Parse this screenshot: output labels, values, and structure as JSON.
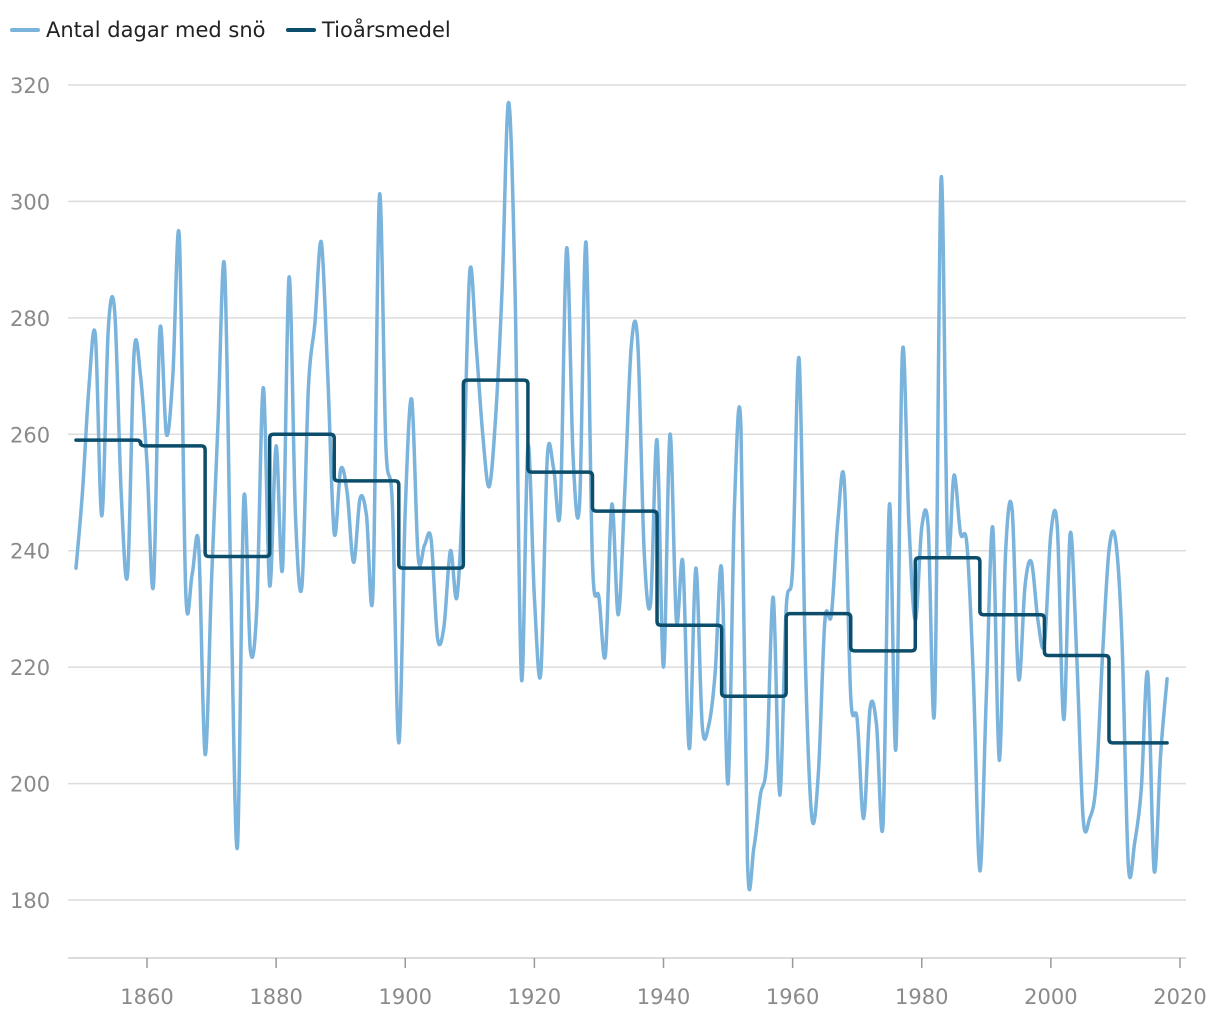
{
  "chart_data": {
    "type": "line",
    "title": "",
    "xlabel": "",
    "ylabel": "",
    "xlim": [
      1845,
      2022
    ],
    "ylim": [
      170,
      325
    ],
    "x_ticks": [
      1860,
      1880,
      1900,
      1920,
      1940,
      1960,
      1980,
      2000,
      2020
    ],
    "y_ticks": [
      180,
      200,
      220,
      240,
      260,
      280,
      300,
      320
    ],
    "grid": "horizontal",
    "legend": "top-left",
    "series": [
      {
        "name": "Antal dagar med snö",
        "color": "#7ab3dc",
        "style": "smooth",
        "x": [
          1849,
          1850,
          1851,
          1852,
          1853,
          1854,
          1855,
          1856,
          1857,
          1858,
          1859,
          1860,
          1861,
          1862,
          1863,
          1864,
          1865,
          1866,
          1867,
          1868,
          1869,
          1870,
          1871,
          1872,
          1873,
          1874,
          1875,
          1876,
          1877,
          1878,
          1879,
          1880,
          1881,
          1882,
          1883,
          1884,
          1885,
          1886,
          1887,
          1888,
          1889,
          1890,
          1891,
          1892,
          1893,
          1894,
          1895,
          1896,
          1897,
          1898,
          1899,
          1900,
          1901,
          1902,
          1903,
          1904,
          1905,
          1906,
          1907,
          1908,
          1909,
          1910,
          1911,
          1912,
          1913,
          1914,
          1915,
          1916,
          1917,
          1918,
          1919,
          1920,
          1921,
          1922,
          1923,
          1924,
          1925,
          1926,
          1927,
          1928,
          1929,
          1930,
          1931,
          1932,
          1933,
          1934,
          1935,
          1936,
          1937,
          1938,
          1939,
          1940,
          1941,
          1942,
          1943,
          1944,
          1945,
          1946,
          1947,
          1948,
          1949,
          1950,
          1951,
          1952,
          1953,
          1954,
          1955,
          1956,
          1957,
          1958,
          1959,
          1960,
          1961,
          1962,
          1963,
          1964,
          1965,
          1966,
          1967,
          1968,
          1969,
          1970,
          1971,
          1972,
          1973,
          1974,
          1975,
          1976,
          1977,
          1978,
          1979,
          1980,
          1981,
          1982,
          1983,
          1984,
          1985,
          1986,
          1987,
          1988,
          1989,
          1990,
          1991,
          1992,
          1993,
          1994,
          1995,
          1996,
          1997,
          1998,
          1999,
          2000,
          2001,
          2002,
          2003,
          2004,
          2005,
          2006,
          2007,
          2008,
          2009,
          2010,
          2011,
          2012,
          2013,
          2014,
          2015,
          2016,
          2017,
          2018
        ],
        "y": [
          237,
          250,
          268,
          277,
          246,
          278,
          281,
          250,
          236,
          274,
          270,
          255,
          234,
          278,
          260,
          270,
          294,
          233,
          236,
          241,
          205,
          235,
          262,
          289,
          233,
          189,
          249,
          223,
          230,
          268,
          234,
          258,
          237,
          287,
          246,
          234,
          268,
          279,
          293,
          270,
          243,
          254,
          250,
          238,
          249,
          246,
          233,
          301,
          258,
          248,
          207,
          247,
          266,
          239,
          241,
          242,
          225,
          227,
          240,
          232,
          252,
          288,
          275,
          260,
          251,
          263,
          285,
          317,
          285,
          218,
          258,
          232,
          219,
          256,
          254,
          247,
          292,
          256,
          248,
          293,
          238,
          232,
          222,
          248,
          229,
          250,
          275,
          276,
          240,
          231,
          259,
          220,
          260,
          228,
          238,
          206,
          237,
          210,
          210,
          219,
          237,
          200,
          248,
          261,
          187,
          189,
          198,
          204,
          232,
          198,
          230,
          237,
          273,
          220,
          194,
          202,
          228,
          229,
          245,
          252,
          215,
          211,
          194,
          213,
          210,
          193,
          248,
          206,
          274,
          245,
          228,
          244,
          244,
          213,
          304,
          241,
          253,
          243,
          241,
          218,
          185,
          215,
          244,
          204,
          240,
          247,
          218,
          234,
          238,
          228,
          224,
          243,
          244,
          211,
          243,
          222,
          194,
          194,
          200,
          222,
          240,
          242,
          225,
          186,
          190,
          199,
          219,
          185,
          205,
          218
        ]
      },
      {
        "name": "Tioårsmedel",
        "color": "#0b4d6a",
        "style": "step",
        "x": [
          1849,
          1859,
          1869,
          1879,
          1889,
          1899,
          1909,
          1919,
          1929,
          1939,
          1949,
          1959,
          1969,
          1979,
          1989,
          1999,
          2009,
          2018
        ],
        "y": [
          259,
          258,
          239,
          260,
          252,
          237,
          269.3,
          253.5,
          246.8,
          227.2,
          215,
          229.2,
          222.8,
          238.8,
          229,
          222,
          207,
          207
        ]
      }
    ]
  }
}
